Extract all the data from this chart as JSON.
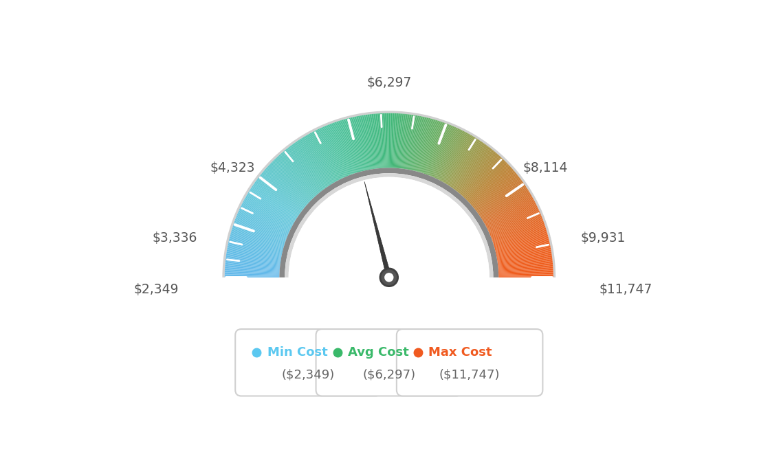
{
  "min_val": 2349,
  "max_val": 11747,
  "avg_val": 6297,
  "needle_value": 6297,
  "tick_values": [
    2349,
    3336,
    4323,
    6297,
    8114,
    9931,
    11747
  ],
  "label_texts": {
    "2349": "$2,349",
    "3336": "$3,336",
    "4323": "$4,323",
    "6297": "$6,297",
    "8114": "$8,114",
    "9931": "$9,931",
    "11747": "$11,747"
  },
  "legend": [
    {
      "label": "Min Cost",
      "value": "($2,349)",
      "color": "#5bc8f0"
    },
    {
      "label": "Avg Cost",
      "value": "($6,297)",
      "color": "#3ab96a"
    },
    {
      "label": "Max Cost",
      "value": "($11,747)",
      "color": "#f05a20"
    }
  ],
  "bg_color": "#ffffff",
  "gradient_stops": [
    [
      0.0,
      [
        0.38,
        0.72,
        0.92
      ]
    ],
    [
      0.18,
      [
        0.38,
        0.78,
        0.85
      ]
    ],
    [
      0.38,
      [
        0.3,
        0.76,
        0.62
      ]
    ],
    [
      0.5,
      [
        0.25,
        0.72,
        0.48
      ]
    ],
    [
      0.6,
      [
        0.4,
        0.68,
        0.38
      ]
    ],
    [
      0.68,
      [
        0.58,
        0.6,
        0.28
      ]
    ],
    [
      0.76,
      [
        0.72,
        0.5,
        0.18
      ]
    ],
    [
      0.84,
      [
        0.85,
        0.42,
        0.15
      ]
    ],
    [
      0.92,
      [
        0.92,
        0.38,
        0.12
      ]
    ],
    [
      1.0,
      [
        0.94,
        0.35,
        0.1
      ]
    ]
  ]
}
